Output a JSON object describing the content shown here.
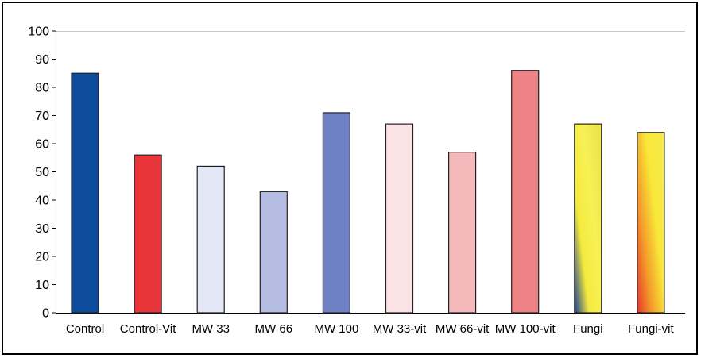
{
  "chart_data": {
    "type": "bar",
    "title": "",
    "xlabel": "",
    "ylabel": "",
    "ylim": [
      0,
      100
    ],
    "yticks": [
      0,
      10,
      20,
      30,
      40,
      50,
      60,
      70,
      80,
      90,
      100
    ],
    "grid": false,
    "legend": "none",
    "categories": [
      "Control",
      "Control-Vit",
      "MW 33",
      "MW 66",
      "MW 100",
      "MW 33-vit",
      "MW 66-vit",
      "MW 100-vit",
      "Fungi",
      "Fungi-vit"
    ],
    "values": [
      85,
      56,
      52,
      43,
      71,
      67,
      57,
      86,
      67,
      64
    ],
    "bar_fills": [
      {
        "type": "solid",
        "color": "#0d4c9c"
      },
      {
        "type": "solid",
        "color": "#e8343b"
      },
      {
        "type": "solid",
        "color": "#e4e8f6"
      },
      {
        "type": "solid",
        "color": "#b5bde2"
      },
      {
        "type": "solid",
        "color": "#6e81c5"
      },
      {
        "type": "solid",
        "color": "#fbe3e5"
      },
      {
        "type": "solid",
        "color": "#f6b9bb"
      },
      {
        "type": "solid",
        "color": "#ee8386"
      },
      {
        "type": "gradient",
        "colors": [
          "#153d92",
          "#f4ea3e",
          "#f8f154",
          "#eee44e"
        ]
      },
      {
        "type": "gradient",
        "colors": [
          "#e8362c",
          "#f59b2a",
          "#f8e838",
          "#f6ea48"
        ]
      }
    ]
  }
}
